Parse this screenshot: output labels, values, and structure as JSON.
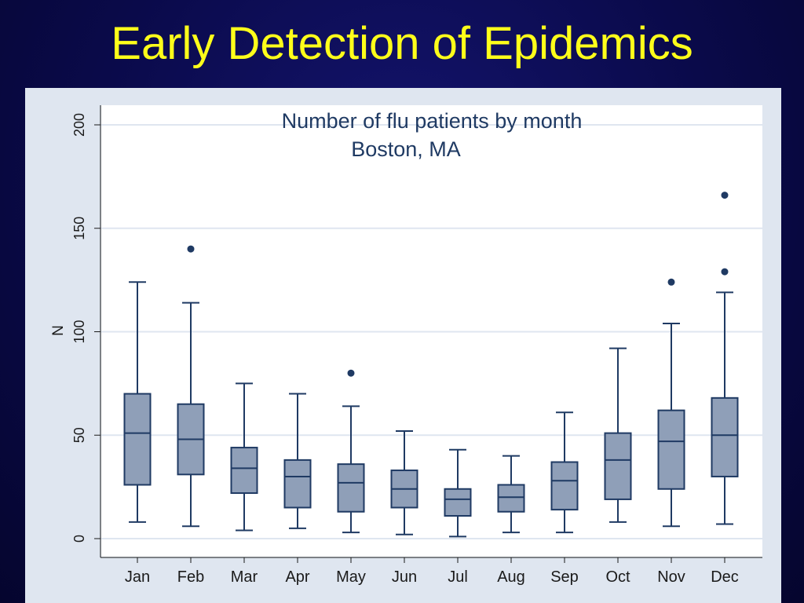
{
  "slide": {
    "title": "Early Detection of Epidemics"
  },
  "chart_data": {
    "type": "box",
    "title": "Number of flu patients by month",
    "subtitle": "Boston, MA",
    "ylabel": "N",
    "xlabel": "",
    "ylim": [
      0,
      200
    ],
    "yticks": [
      0,
      50,
      100,
      150,
      200
    ],
    "grid": true,
    "categories": [
      "Jan",
      "Feb",
      "Mar",
      "Apr",
      "May",
      "Jun",
      "Jul",
      "Aug",
      "Sep",
      "Oct",
      "Nov",
      "Dec"
    ],
    "boxes": [
      {
        "min": 8,
        "q1": 26,
        "median": 51,
        "q3": 70,
        "max": 124,
        "outliers": []
      },
      {
        "min": 6,
        "q1": 31,
        "median": 48,
        "q3": 65,
        "max": 114,
        "outliers": [
          140
        ]
      },
      {
        "min": 4,
        "q1": 22,
        "median": 34,
        "q3": 44,
        "max": 75,
        "outliers": []
      },
      {
        "min": 5,
        "q1": 15,
        "median": 30,
        "q3": 38,
        "max": 70,
        "outliers": []
      },
      {
        "min": 3,
        "q1": 13,
        "median": 27,
        "q3": 36,
        "max": 64,
        "outliers": [
          80
        ]
      },
      {
        "min": 2,
        "q1": 15,
        "median": 24,
        "q3": 33,
        "max": 52,
        "outliers": []
      },
      {
        "min": 1,
        "q1": 11,
        "median": 19,
        "q3": 24,
        "max": 43,
        "outliers": []
      },
      {
        "min": 3,
        "q1": 13,
        "median": 20,
        "q3": 26,
        "max": 40,
        "outliers": []
      },
      {
        "min": 3,
        "q1": 14,
        "median": 28,
        "q3": 37,
        "max": 61,
        "outliers": []
      },
      {
        "min": 8,
        "q1": 19,
        "median": 38,
        "q3": 51,
        "max": 92,
        "outliers": []
      },
      {
        "min": 6,
        "q1": 24,
        "median": 47,
        "q3": 62,
        "max": 104,
        "outliers": [
          124
        ]
      },
      {
        "min": 7,
        "q1": 30,
        "median": 50,
        "q3": 68,
        "max": 119,
        "outliers": [
          129,
          166
        ]
      }
    ],
    "colors": {
      "box_fill": "#8f9fb8",
      "box_stroke": "#1f3a63",
      "outlier": "#1f3a63",
      "grid": "#dfe6f0",
      "plot_bg": "#ffffff",
      "panel_bg": "#dfe6f0"
    }
  }
}
